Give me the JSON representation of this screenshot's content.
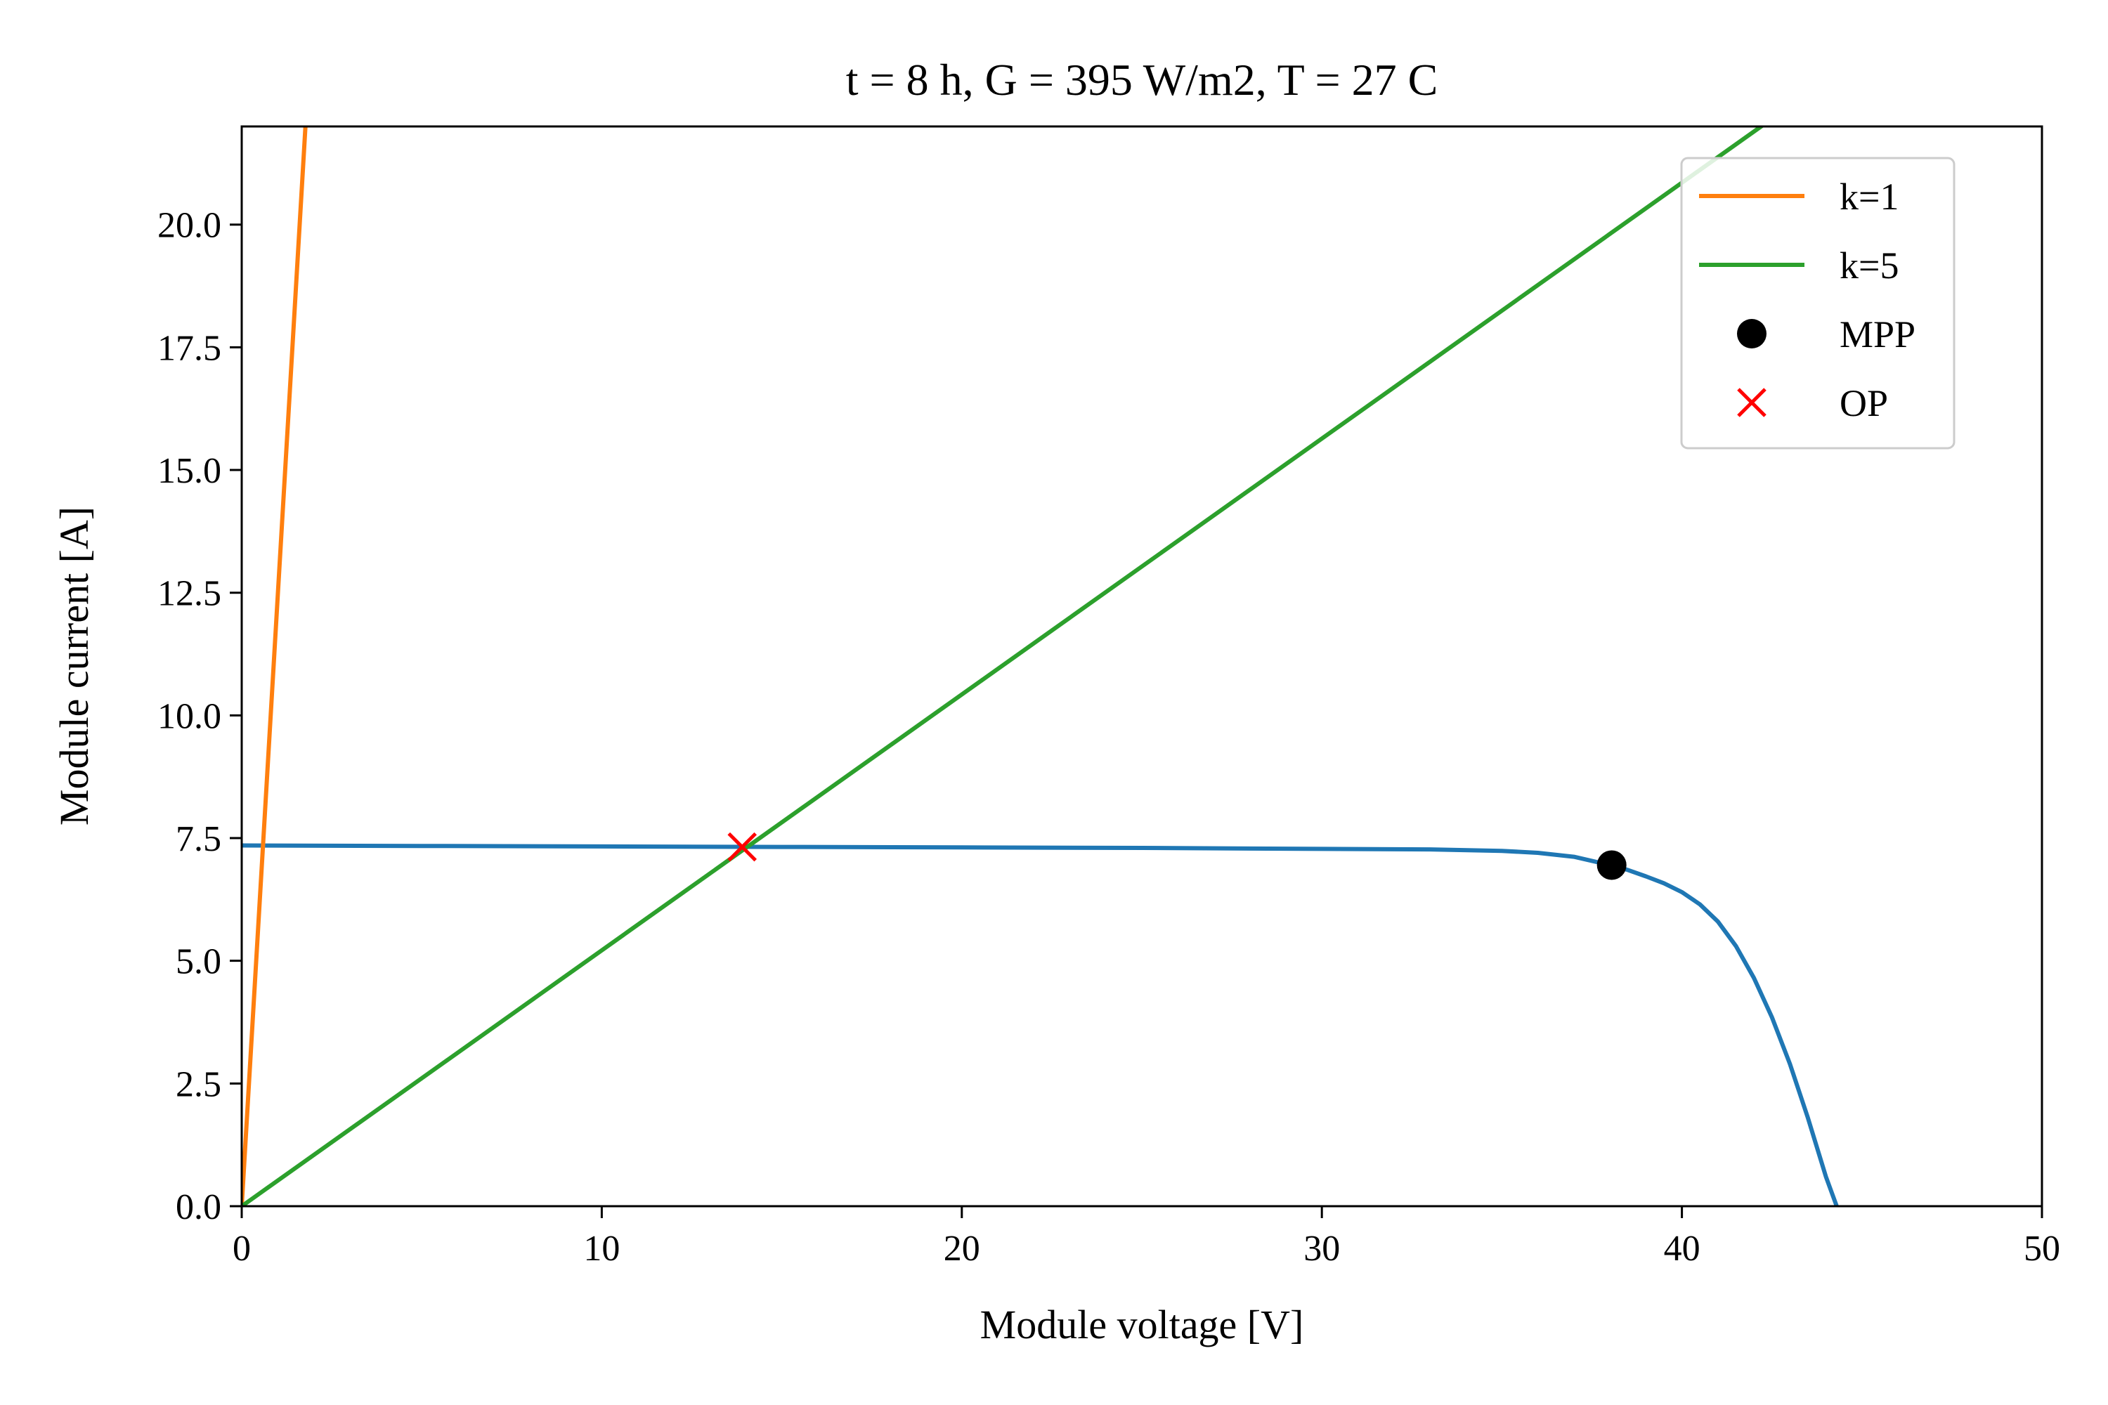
{
  "chart_data": {
    "type": "line",
    "title": "t = 8 h, G = 395 W/m2, T = 27 C",
    "xlabel": "Module voltage [V]",
    "ylabel": "Module current [A]",
    "xlim": [
      0,
      50
    ],
    "ylim": [
      0,
      22
    ],
    "xticks": [
      0,
      10,
      20,
      30,
      40,
      50
    ],
    "xtick_labels": [
      "0",
      "10",
      "20",
      "30",
      "40",
      "50"
    ],
    "yticks": [
      0,
      2.5,
      5,
      7.5,
      10,
      12.5,
      15,
      17.5,
      20
    ],
    "ytick_labels": [
      "0.0",
      "2.5",
      "5.0",
      "7.5",
      "10.0",
      "12.5",
      "15.0",
      "17.5",
      "20.0"
    ],
    "grid": false,
    "legend_position": "top-right",
    "colors": {
      "iv_curve": "#1f77b4",
      "k1": "#ff7f0e",
      "k5": "#2ca02c",
      "mpp": "#000000",
      "op": "#ff0000"
    },
    "series": [
      {
        "key": "iv_curve",
        "x": [
          0,
          5,
          10,
          15,
          20,
          25,
          30,
          33,
          35,
          36,
          37,
          38,
          38.5,
          39,
          39.5,
          40,
          40.5,
          41,
          41.5,
          42,
          42.5,
          43,
          43.5,
          44,
          44.3
        ],
        "y": [
          7.35,
          7.34,
          7.33,
          7.32,
          7.31,
          7.3,
          7.28,
          7.27,
          7.24,
          7.2,
          7.12,
          6.95,
          6.85,
          6.72,
          6.58,
          6.4,
          6.15,
          5.8,
          5.3,
          4.65,
          3.85,
          2.9,
          1.8,
          0.6,
          0.0
        ]
      },
      {
        "key": "k1",
        "name": "k=1",
        "x": [
          0,
          1.77
        ],
        "y": [
          0,
          22
        ]
      },
      {
        "key": "k5",
        "name": "k=5",
        "x": [
          0,
          42.2
        ],
        "y": [
          0,
          22
        ]
      }
    ],
    "points": [
      {
        "key": "mpp",
        "name": "MPP",
        "marker": "circle",
        "x": 38.05,
        "y": 6.95
      },
      {
        "key": "op",
        "name": "OP",
        "marker": "x",
        "x": 13.9,
        "y": 7.32
      }
    ],
    "legend": [
      {
        "key": "k1",
        "label": "k=1",
        "kind": "line"
      },
      {
        "key": "k5",
        "label": "k=5",
        "kind": "line"
      },
      {
        "key": "mpp",
        "label": "MPP",
        "kind": "circle"
      },
      {
        "key": "op",
        "label": "OP",
        "kind": "x"
      }
    ]
  }
}
